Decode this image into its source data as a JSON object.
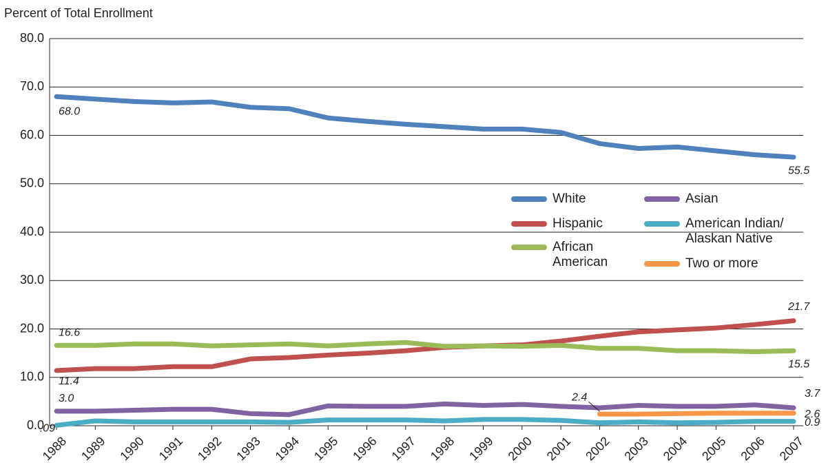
{
  "chart_data": {
    "type": "line",
    "y_label": "Percent of Total Enrollment",
    "categories": [
      "1988",
      "1989",
      "1990",
      "1991",
      "1992",
      "1993",
      "1994",
      "1995",
      "1996",
      "1997",
      "1998",
      "1999",
      "2000",
      "2001",
      "2002",
      "2003",
      "2004",
      "2005",
      "2006",
      "2007"
    ],
    "ylim": [
      0,
      80
    ],
    "yticks": [
      {
        "value": 0,
        "label": "0.0"
      },
      {
        "value": 10,
        "label": "10.0"
      },
      {
        "value": 20,
        "label": "20.0"
      },
      {
        "value": 30,
        "label": "30.0"
      },
      {
        "value": 40,
        "label": "40.0"
      },
      {
        "value": 50,
        "label": "50.0"
      },
      {
        "value": 60,
        "label": "60.0"
      },
      {
        "value": 70,
        "label": "70.0"
      },
      {
        "value": 80,
        "label": "80.0"
      }
    ],
    "grid": true,
    "series": [
      {
        "name": "White",
        "color": "#4f81bd",
        "values": [
          68.0,
          67.5,
          67.0,
          66.7,
          66.9,
          65.8,
          65.5,
          63.6,
          62.9,
          62.3,
          61.8,
          61.3,
          61.3,
          60.6,
          58.3,
          57.3,
          57.6,
          56.8,
          56.0,
          55.5
        ],
        "value_labels": [
          "68.0",
          null,
          null,
          null,
          null,
          null,
          null,
          null,
          null,
          null,
          null,
          null,
          null,
          null,
          null,
          null,
          null,
          null,
          null,
          "55.5"
        ]
      },
      {
        "name": "Hispanic",
        "color": "#c0504d",
        "values": [
          11.4,
          11.8,
          11.8,
          12.2,
          12.2,
          13.8,
          14.1,
          14.6,
          15.0,
          15.5,
          16.2,
          16.5,
          16.7,
          17.5,
          18.5,
          19.4,
          19.8,
          20.2,
          20.9,
          21.7
        ],
        "value_labels": [
          "11.4",
          null,
          null,
          null,
          null,
          null,
          null,
          null,
          null,
          null,
          null,
          null,
          null,
          null,
          null,
          null,
          null,
          null,
          null,
          "21.7"
        ]
      },
      {
        "name": "African American",
        "color": "#9bbb59",
        "values": [
          16.6,
          16.6,
          16.9,
          16.9,
          16.5,
          16.7,
          16.9,
          16.5,
          16.9,
          17.2,
          16.4,
          16.5,
          16.4,
          16.6,
          16.0,
          16.0,
          15.5,
          15.5,
          15.3,
          15.5
        ],
        "value_labels": [
          "16.6",
          null,
          null,
          null,
          null,
          null,
          null,
          null,
          null,
          null,
          null,
          null,
          null,
          null,
          null,
          null,
          null,
          null,
          null,
          "15.5"
        ]
      },
      {
        "name": "Asian",
        "color": "#8064a2",
        "values": [
          3.0,
          3.0,
          3.2,
          3.4,
          3.4,
          2.5,
          2.3,
          4.1,
          4.0,
          4.0,
          4.5,
          4.2,
          4.4,
          4.0,
          3.7,
          4.2,
          4.0,
          4.0,
          4.3,
          3.7
        ],
        "value_labels": [
          "3.0",
          null,
          null,
          null,
          null,
          null,
          null,
          null,
          null,
          null,
          null,
          null,
          null,
          null,
          null,
          null,
          null,
          null,
          null,
          "3.7"
        ]
      },
      {
        "name": "American Indian/ Alaskan Native",
        "color": "#4bacc6",
        "values": [
          0.09,
          1.0,
          0.8,
          0.8,
          0.8,
          0.8,
          0.7,
          1.2,
          1.2,
          1.2,
          1.0,
          1.3,
          1.3,
          1.1,
          0.6,
          0.8,
          0.6,
          0.7,
          0.9,
          0.9
        ],
        "value_labels": [
          ".09",
          null,
          null,
          null,
          null,
          null,
          null,
          null,
          null,
          null,
          null,
          null,
          null,
          null,
          null,
          null,
          null,
          null,
          null,
          "0.9"
        ]
      },
      {
        "name": "Two or more",
        "color": "#f79646",
        "values": [
          null,
          null,
          null,
          null,
          null,
          null,
          null,
          null,
          null,
          null,
          null,
          null,
          null,
          null,
          2.4,
          2.4,
          2.5,
          2.6,
          2.6,
          2.6
        ],
        "value_labels": [
          null,
          null,
          null,
          null,
          null,
          null,
          null,
          null,
          null,
          null,
          null,
          null,
          null,
          null,
          "2.4",
          null,
          null,
          null,
          null,
          "2.6"
        ]
      }
    ]
  }
}
